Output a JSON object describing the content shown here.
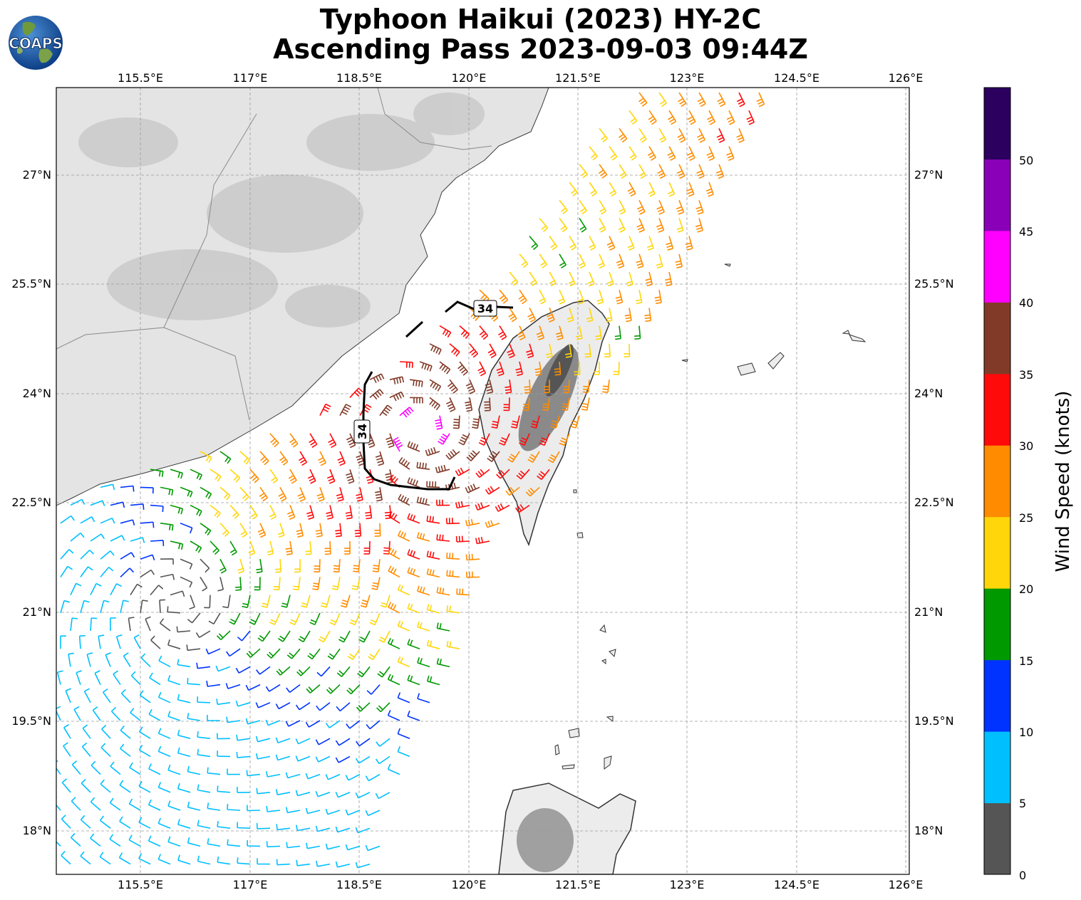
{
  "title": {
    "line1": "Typhoon Haikui (2023) HY-2C",
    "line2": "Ascending Pass 2023-09-03 09:44Z"
  },
  "logo": {
    "text": "COAPS",
    "icon": "globe-logo-icon"
  },
  "map": {
    "lon_labels": [
      "115.5°E",
      "117°E",
      "118.5°E",
      "120°E",
      "121.5°E",
      "123°E",
      "124.5°E",
      "126°E"
    ],
    "lat_labels": [
      "27°N",
      "25.5°N",
      "24°N",
      "22.5°N",
      "21°N",
      "19.5°N",
      "18°N"
    ],
    "contour_label_1": "34",
    "contour_label_2": "34",
    "land_color": "#e6e6e6",
    "coast_color": "#333333",
    "grid_color": "#9a9a9a"
  },
  "colorbar": {
    "label": "Wind Speed (knots)",
    "ticks": [
      "0",
      "5",
      "10",
      "15",
      "20",
      "25",
      "30",
      "35",
      "40",
      "45",
      "50"
    ],
    "colors": [
      "#555555",
      "#00bfff",
      "#0033ff",
      "#009900",
      "#ffd60a",
      "#ff8c00",
      "#ff0a0a",
      "#823a28",
      "#ff00ff",
      "#8a00b8",
      "#2b005e"
    ]
  }
}
